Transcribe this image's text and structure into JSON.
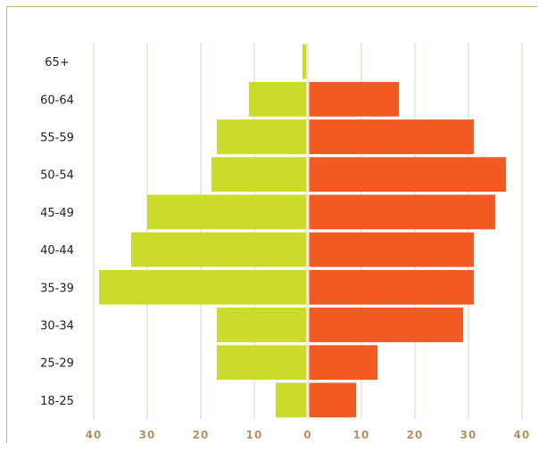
{
  "chart_data": {
    "type": "bar",
    "orientation": "horizontal",
    "layout": "population-pyramid",
    "categories": [
      "18-25",
      "25-29",
      "30-34",
      "35-39",
      "40-44",
      "45-49",
      "50-54",
      "55-59",
      "60-64",
      "65+"
    ],
    "series": [
      {
        "side": "left",
        "color": "#cadb2a",
        "values": [
          6,
          17,
          17,
          39,
          33,
          30,
          18,
          17,
          11,
          1
        ]
      },
      {
        "side": "right",
        "color": "#f15a22",
        "values": [
          9,
          13,
          29,
          31,
          31,
          35,
          37,
          31,
          17,
          0
        ]
      }
    ],
    "xticks": [
      {
        "value": -40,
        "label": "40"
      },
      {
        "value": -30,
        "label": "30"
      },
      {
        "value": -20,
        "label": "20"
      },
      {
        "value": -10,
        "label": "10"
      },
      {
        "value": 0,
        "label": "0"
      },
      {
        "value": 10,
        "label": "10"
      },
      {
        "value": 20,
        "label": "20"
      },
      {
        "value": 30,
        "label": "30"
      },
      {
        "value": 40,
        "label": "40"
      }
    ],
    "xlim": [
      -40,
      40
    ],
    "grid": true,
    "legend": "none",
    "colors": {
      "grid": "#ddd3bc",
      "tick_label": "#b39460",
      "frame": "#c4b060"
    }
  }
}
